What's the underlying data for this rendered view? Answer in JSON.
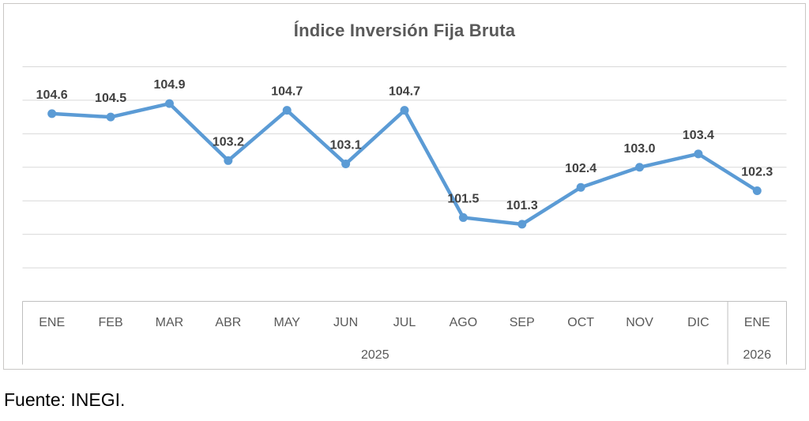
{
  "chart_data": {
    "type": "line",
    "title": "Índice Inversión Fija Bruta",
    "x": [
      "ENE",
      "FEB",
      "MAR",
      "ABR",
      "MAY",
      "JUN",
      "JUL",
      "AGO",
      "SEP",
      "OCT",
      "NOV",
      "DIC",
      "ENE"
    ],
    "x_groups": [
      {
        "label": "2025",
        "span": 12
      },
      {
        "label": "2026",
        "span": 1
      }
    ],
    "series": [
      {
        "name": "Índice Inversión Fija Bruta",
        "values": [
          104.6,
          104.5,
          104.9,
          103.2,
          104.7,
          103.1,
          104.7,
          101.5,
          101.3,
          102.4,
          103.0,
          103.4,
          102.3
        ]
      }
    ],
    "data_labels": [
      "104.6",
      "104.5",
      "104.9",
      "103.2",
      "104.7",
      "103.1",
      "104.7",
      "101.5",
      "101.3",
      "102.4",
      "103.0",
      "103.4",
      "102.3"
    ],
    "xlabel": "",
    "ylabel": "",
    "ylim": [
      99,
      106
    ],
    "grid_step": 1,
    "grid": true,
    "legend": false,
    "y_axis_labels_visible": false,
    "colors": {
      "line": "#5B9BD5",
      "marker": "#5B9BD5",
      "grid": "#D9D9D9",
      "axis": "#BFBFBF",
      "frame": "#C9C7C5",
      "title": "#595959",
      "tick": "#595959",
      "data_label": "#404040"
    }
  },
  "footer": {
    "source": "Fuente: INEGI."
  }
}
